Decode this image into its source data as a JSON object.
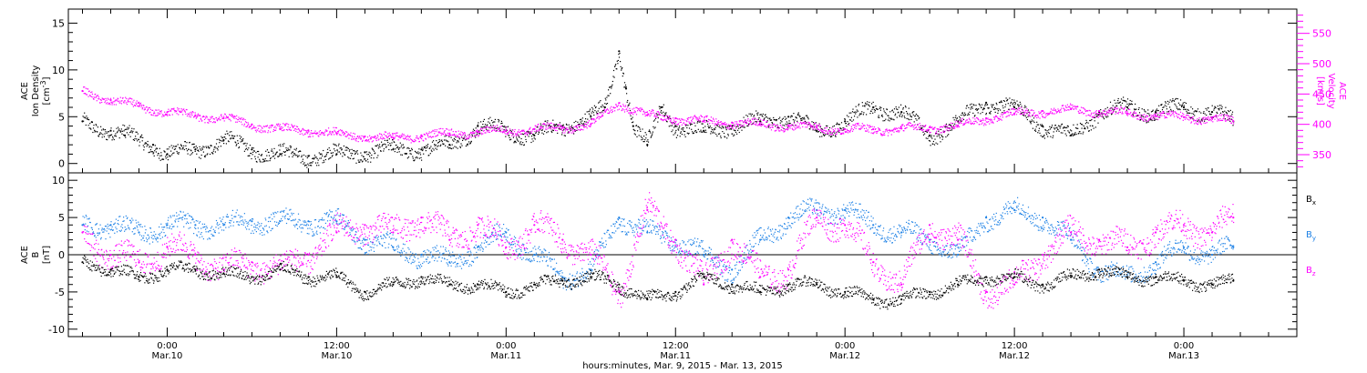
{
  "chart_data": [
    {
      "type": "scatter",
      "panel": "top",
      "ylabel_left": [
        "ACE",
        "Ion Density",
        "[cm^-3]"
      ],
      "ylabel_right": [
        "ACE",
        "Velocity",
        "[km/s]"
      ],
      "ylim_left": [
        -1,
        16.5
      ],
      "ylim_right": [
        320,
        590
      ],
      "yticks_left": [
        0,
        5,
        10,
        15
      ],
      "yticks_right": [
        350,
        400,
        450,
        500,
        550
      ],
      "series": [
        {
          "color": "#000000",
          "x": [
            -6,
            -4,
            -3,
            -1,
            0,
            2,
            4,
            6,
            8,
            10,
            12,
            14,
            16,
            18,
            20,
            22,
            24,
            26,
            28,
            30,
            31,
            32,
            32.5,
            33,
            34,
            35,
            36,
            38,
            40,
            42,
            44,
            46,
            48,
            50,
            52,
            54,
            56,
            58,
            60,
            62,
            64,
            66,
            68,
            70,
            72,
            74,
            75.5
          ],
          "y": [
            4.5,
            3.5,
            3,
            2,
            1,
            1.5,
            2.5,
            1.5,
            1,
            0.8,
            1,
            1.2,
            1.5,
            1.5,
            2,
            4,
            3.5,
            3,
            4,
            5,
            6,
            12,
            8,
            4,
            2,
            6,
            4,
            3.5,
            4,
            4.5,
            5,
            3.5,
            4.5,
            6,
            5.5,
            3,
            4.5,
            6.5,
            6,
            4,
            3,
            5.5,
            6,
            5.5,
            6,
            5.5,
            4.5
          ]
        },
        {
          "color": "#ff00ff",
          "x": [
            -6,
            -4,
            -2,
            0,
            2,
            4,
            6,
            8,
            10,
            12,
            14,
            16,
            18,
            20,
            22,
            24,
            26,
            28,
            30,
            32,
            34,
            36,
            38,
            40,
            42,
            44,
            46,
            48,
            50,
            52,
            54,
            56,
            58,
            60,
            62,
            64,
            66,
            68,
            70,
            72,
            74,
            75.5
          ],
          "y": [
            455,
            440,
            430,
            420,
            415,
            410,
            400,
            392,
            390,
            385,
            380,
            378,
            382,
            385,
            388,
            390,
            392,
            395,
            400,
            435,
            415,
            410,
            405,
            403,
            400,
            398,
            395,
            392,
            392,
            393,
            395,
            398,
            410,
            418,
            422,
            425,
            422,
            418,
            415,
            412,
            410,
            405
          ]
        }
      ]
    },
    {
      "type": "scatter",
      "panel": "bottom",
      "ylabel": [
        "ACE",
        "B",
        "[nT]"
      ],
      "ylim": [
        -11,
        11
      ],
      "yticks": [
        -10,
        -5,
        0,
        5,
        10
      ],
      "series": [
        {
          "name": "Bx",
          "color": "#000000",
          "x": [
            -6,
            -4,
            -2,
            0,
            2,
            4,
            6,
            8,
            10,
            12,
            14,
            16,
            18,
            20,
            22,
            24,
            26,
            28,
            30,
            32,
            34,
            36,
            38,
            40,
            42,
            44,
            46,
            48,
            50,
            52,
            54,
            56,
            58,
            60,
            62,
            64,
            66,
            68,
            70,
            72,
            74,
            75.5
          ],
          "y": [
            -1,
            -2,
            -3,
            -2,
            -2,
            -2.5,
            -3,
            -2,
            -3,
            -3,
            -5,
            -4,
            -3,
            -4,
            -4,
            -5,
            -4,
            -3.5,
            -3,
            -4,
            -6,
            -5,
            -3,
            -4,
            -5,
            -4,
            -4,
            -5,
            -6,
            -6,
            -5,
            -4,
            -3,
            -3,
            -4,
            -3,
            -2,
            -3,
            -3,
            -3.5,
            -4,
            -3.5
          ]
        },
        {
          "name": "By",
          "color": "#1e82e6",
          "x": [
            -6,
            -4,
            -2,
            0,
            2,
            4,
            6,
            8,
            10,
            12,
            14,
            16,
            18,
            20,
            22,
            24,
            26,
            28,
            30,
            32,
            34,
            36,
            38,
            40,
            42,
            44,
            46,
            48,
            50,
            52,
            54,
            56,
            58,
            60,
            62,
            64,
            66,
            68,
            70,
            72,
            74,
            75.5
          ],
          "y": [
            4,
            4,
            3,
            4,
            4,
            4,
            4.5,
            4.5,
            4.5,
            4.5,
            2,
            1,
            0,
            -1,
            1,
            3,
            0,
            -3,
            -2,
            5,
            3,
            2,
            0,
            -2,
            2,
            5,
            6,
            6,
            4,
            3,
            2,
            0,
            5,
            6,
            5,
            2,
            -2,
            -3,
            -1,
            1,
            0,
            1
          ]
        },
        {
          "name": "Bz",
          "color": "#ff00ff",
          "x": [
            -6,
            -4,
            -2,
            0,
            2,
            4,
            6,
            8,
            10,
            12,
            14,
            16,
            18,
            20,
            22,
            24,
            26,
            28,
            30,
            32,
            34,
            36,
            38,
            40,
            42,
            44,
            46,
            48,
            50,
            52,
            54,
            56,
            58,
            60,
            62,
            64,
            66,
            68,
            70,
            72,
            74,
            75.5
          ],
          "y": [
            3,
            0,
            -1,
            1,
            0,
            -2,
            -1,
            -2,
            0,
            3,
            4,
            3,
            5,
            2,
            4,
            1,
            4,
            2,
            0,
            -5,
            6,
            2,
            -4,
            2,
            -3,
            -2,
            5,
            4,
            -1,
            -4,
            4,
            2,
            -5,
            -4,
            0,
            3,
            2,
            1,
            3,
            4,
            3,
            5
          ]
        }
      ]
    }
  ],
  "x_axis": {
    "range_hours": [
      -7,
      80
    ],
    "ticks": [
      {
        "h": 0,
        "time": "0:00",
        "date": "Mar.10"
      },
      {
        "h": 12,
        "time": "12:00",
        "date": "Mar.10"
      },
      {
        "h": 24,
        "time": "0:00",
        "date": "Mar.11"
      },
      {
        "h": 36,
        "time": "12:00",
        "date": "Mar.11"
      },
      {
        "h": 48,
        "time": "0:00",
        "date": "Mar.12"
      },
      {
        "h": 60,
        "time": "12:00",
        "date": "Mar.12"
      },
      {
        "h": 72,
        "time": "0:00",
        "date": "Mar.13"
      }
    ],
    "title": "hours:minutes, Mar. 9, 2015 - Mar. 13, 2015"
  },
  "legend": [
    {
      "label": "B",
      "sub": "x",
      "color": "#000000"
    },
    {
      "label": "B",
      "sub": "y",
      "color": "#1e82e6"
    },
    {
      "label": "B",
      "sub": "z",
      "color": "#ff00ff"
    }
  ]
}
